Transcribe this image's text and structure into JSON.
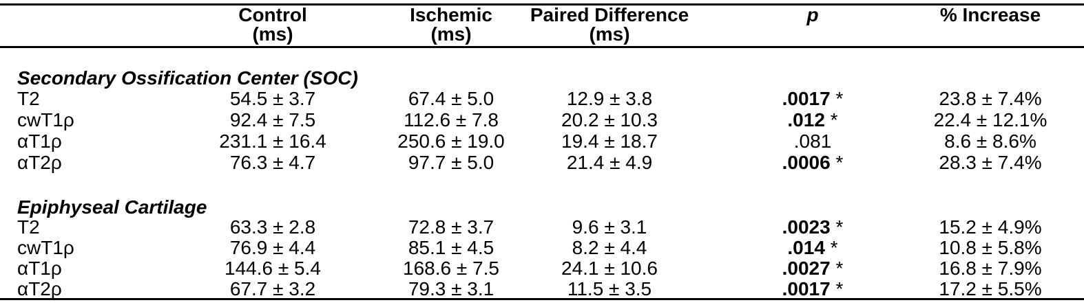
{
  "page": {
    "background_color": "#ffffff",
    "text_color": "#000000",
    "rule_color": "#000000"
  },
  "table": {
    "header": {
      "columns": [
        {
          "key": "control",
          "line1": "Control",
          "line2": "(ms)"
        },
        {
          "key": "ischemic",
          "line1": "Ischemic",
          "line2": "(ms)"
        },
        {
          "key": "paired_difference",
          "line1": "Paired Difference",
          "line2": "(ms)"
        },
        {
          "key": "p",
          "line1": "p",
          "line2": ""
        },
        {
          "key": "percent_increase",
          "line1": "% Increase",
          "line2": ""
        }
      ]
    },
    "sections": [
      {
        "title": "Secondary Ossification Center (SOC)",
        "rows": [
          {
            "label": "T2",
            "control_ms": "54.5 ± 3.7",
            "ischemic_ms": "67.4 ± 5.0",
            "paired_difference_ms": "12.9 ± 3.8",
            "p": ".0017",
            "p_star": " *",
            "p_weight": "bold",
            "percent_increase": "23.8 ± 7.4%"
          },
          {
            "label": "cwT1ρ",
            "control_ms": "92.4 ± 7.5",
            "ischemic_ms": "112.6 ± 7.8",
            "paired_difference_ms": "20.2 ± 10.3",
            "p": ".012",
            "p_star": " *",
            "p_weight": "bold",
            "percent_increase": "22.4 ± 12.1%"
          },
          {
            "label": "αT1ρ",
            "control_ms": "231.1 ± 16.4",
            "ischemic_ms": "250.6 ± 19.0",
            "paired_difference_ms": "19.4 ± 18.7",
            "p": ".081",
            "p_star": "",
            "p_weight": "normal",
            "percent_increase": "8.6 ± 8.6%"
          },
          {
            "label": "αT2ρ",
            "control_ms": "76.3 ± 4.7",
            "ischemic_ms": "97.7 ± 5.0",
            "paired_difference_ms": "21.4 ± 4.9",
            "p": ".0006",
            "p_star": " *",
            "p_weight": "bold",
            "percent_increase": "28.3 ± 7.4%"
          }
        ]
      },
      {
        "title": "Epiphyseal Cartilage",
        "rows": [
          {
            "label": "T2",
            "control_ms": "63.3 ± 2.8",
            "ischemic_ms": "72.8 ± 3.7",
            "paired_difference_ms": "9.6 ± 3.1",
            "p": ".0023",
            "p_star": " *",
            "p_weight": "bold",
            "percent_increase": "15.2 ± 4.9%"
          },
          {
            "label": "cwT1ρ",
            "control_ms": "76.9 ± 4.4",
            "ischemic_ms": "85.1 ± 4.5",
            "paired_difference_ms": "8.2 ± 4.4",
            "p": ".014",
            "p_star": " *",
            "p_weight": "bold",
            "percent_increase": "10.8 ± 5.8%"
          },
          {
            "label": "αT1ρ",
            "control_ms": "144.6 ± 5.4",
            "ischemic_ms": "168.6 ± 7.5",
            "paired_difference_ms": "24.1 ± 10.6",
            "p": ".0027",
            "p_star": " *",
            "p_weight": "bold",
            "percent_increase": "16.8 ± 7.9%"
          },
          {
            "label": "αT2ρ",
            "control_ms": "67.7 ± 3.2",
            "ischemic_ms": "79.3 ± 3.1",
            "paired_difference_ms": "11.5 ± 3.5",
            "p": ".0017",
            "p_star": " *",
            "p_weight": "bold",
            "percent_increase": "17.2 ± 5.5%"
          }
        ]
      }
    ]
  }
}
